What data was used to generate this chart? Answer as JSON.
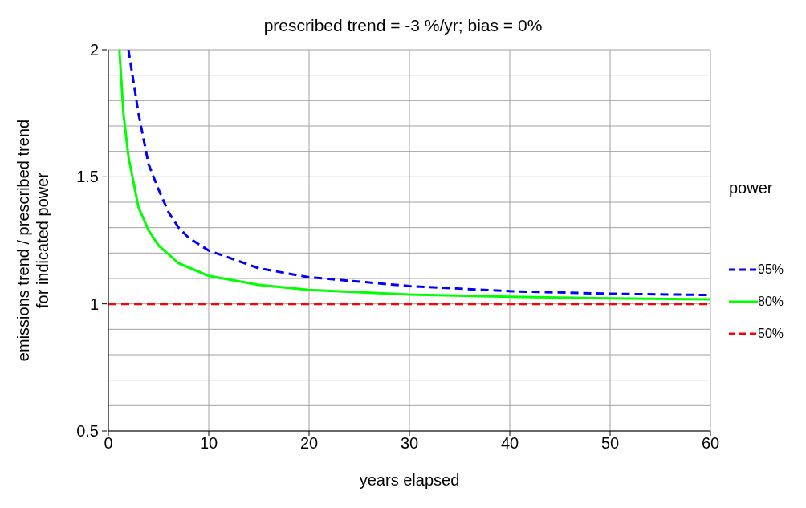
{
  "chart_data": {
    "type": "line",
    "title": "prescribed trend = -3 %/yr;  bias = 0%",
    "xlabel": "years elapsed",
    "ylabel": "emissions trend / prescribed trend\nfor indicated power",
    "legend_title": "power",
    "legend": "right",
    "grid": true,
    "marker": "none",
    "xlim": [
      0,
      60
    ],
    "xticks": [
      0,
      10,
      20,
      30,
      40,
      50,
      60
    ],
    "ylim": [
      0.5,
      2
    ],
    "yticks": [
      0.5,
      {
        "value": 0.6,
        "label": null
      },
      {
        "value": 0.7,
        "label": null
      },
      {
        "value": 0.8,
        "label": null
      },
      {
        "value": 0.9,
        "label": null
      },
      1,
      {
        "value": 1.1,
        "label": null
      },
      {
        "value": 1.2,
        "label": null
      },
      {
        "value": 1.3,
        "label": null
      },
      {
        "value": 1.4,
        "label": null
      },
      1.5,
      {
        "value": 1.6,
        "label": null
      },
      {
        "value": 1.7,
        "label": null
      },
      {
        "value": 1.8,
        "label": null
      },
      {
        "value": 1.9,
        "label": null
      },
      2
    ],
    "series": [
      {
        "name": "95%",
        "color": "#0000ff",
        "line_style": "dashed",
        "x": [
          2,
          3,
          4,
          5,
          6,
          7,
          8,
          10,
          15,
          20,
          30,
          40,
          50,
          60
        ],
        "values": [
          2.0,
          1.75,
          1.55,
          1.45,
          1.36,
          1.3,
          1.26,
          1.21,
          1.14,
          1.105,
          1.07,
          1.05,
          1.04,
          1.035
        ]
      },
      {
        "name": "80%",
        "color": "#00ff00",
        "line_style": "solid",
        "x": [
          1.1,
          1.5,
          2,
          3,
          4,
          5,
          7,
          10,
          15,
          20,
          30,
          40,
          50,
          60
        ],
        "values": [
          2.0,
          1.75,
          1.58,
          1.38,
          1.29,
          1.23,
          1.16,
          1.11,
          1.075,
          1.055,
          1.037,
          1.028,
          1.022,
          1.018
        ]
      },
      {
        "name": "50%",
        "color": "#ff0000",
        "line_style": "dashed",
        "x": [
          0,
          60
        ],
        "values": [
          1,
          1
        ]
      }
    ]
  }
}
